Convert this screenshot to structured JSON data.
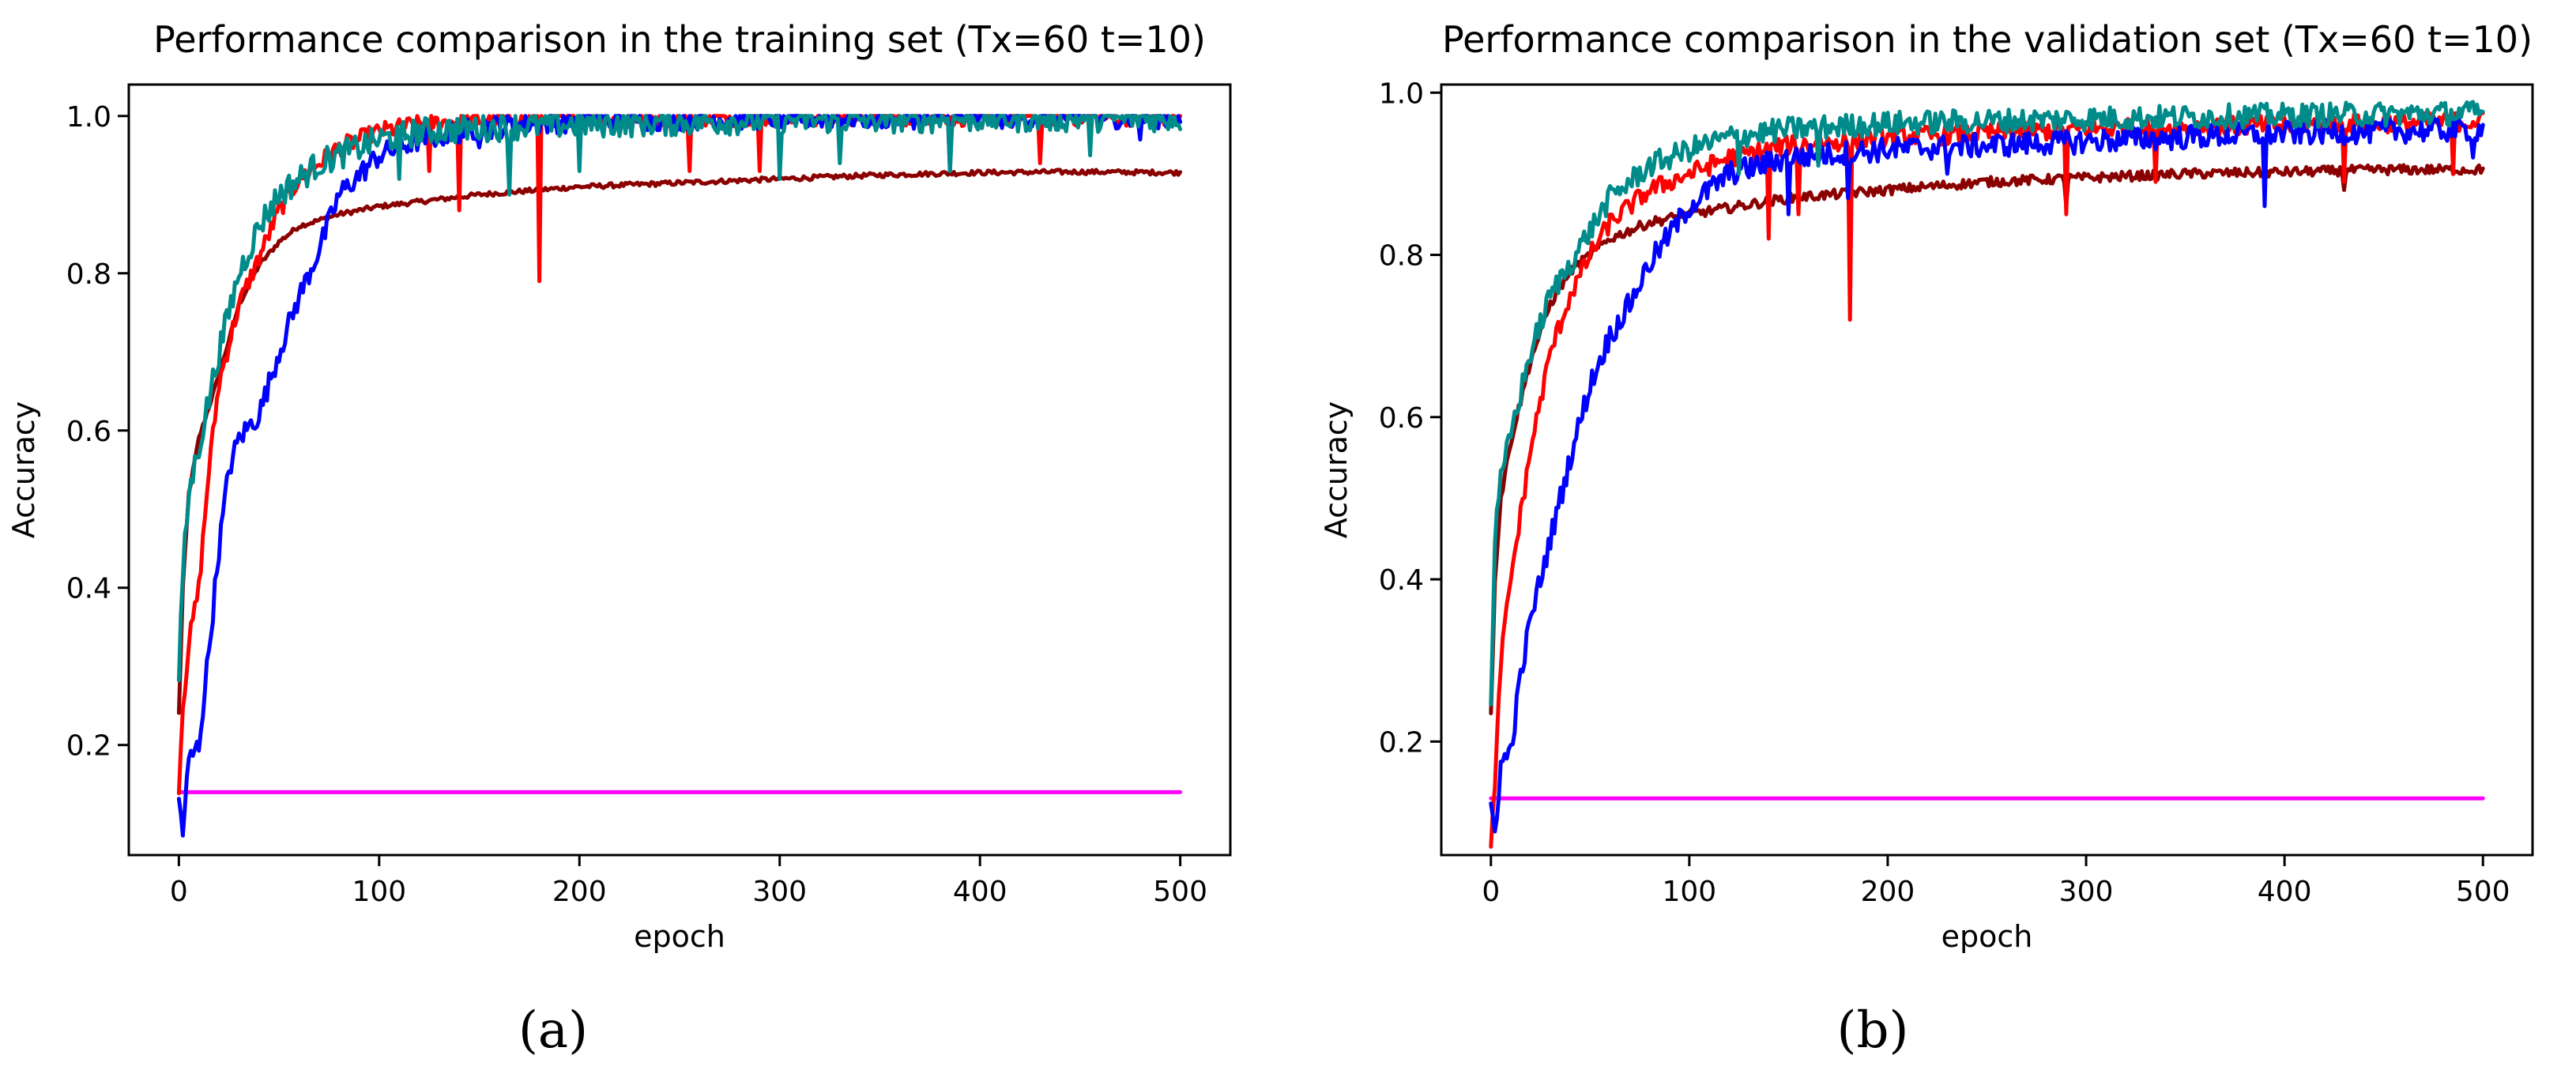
{
  "chart_data": [
    {
      "type": "line",
      "panel_label": "(a)",
      "title": "Performance comparison in the training set (Tx=60   t=10)",
      "xlabel": "epoch",
      "ylabel": "Accuracy",
      "xlim": [
        -25,
        525
      ],
      "ylim": [
        0.06,
        1.04
      ],
      "xticks": [
        0,
        100,
        200,
        300,
        400,
        500
      ],
      "yticks": [
        0.2,
        0.4,
        0.6,
        0.8,
        1.0
      ],
      "xtick_labels": [
        "0",
        "100",
        "200",
        "300",
        "400",
        "500"
      ],
      "ytick_labels": [
        "0.2",
        "0.4",
        "0.6",
        "0.8",
        "1.0"
      ],
      "grid": false,
      "series": [
        {
          "name": "magenta",
          "color": "#ff00ff",
          "noise": 0,
          "x": [
            0,
            500
          ],
          "y": [
            0.14,
            0.14
          ],
          "dips": []
        },
        {
          "name": "dark red",
          "color": "#8b0000",
          "noise": 0.003,
          "x": [
            0,
            2,
            5,
            10,
            20,
            30,
            40,
            50,
            60,
            80,
            100,
            150,
            200,
            250,
            300,
            350,
            400,
            450,
            500
          ],
          "y": [
            0.24,
            0.4,
            0.52,
            0.59,
            0.67,
            0.76,
            0.81,
            0.84,
            0.86,
            0.875,
            0.885,
            0.9,
            0.91,
            0.915,
            0.92,
            0.925,
            0.928,
            0.929,
            0.928
          ],
          "dips": []
        },
        {
          "name": "red",
          "color": "#ff0000",
          "noise": 0.012,
          "x": [
            0,
            2,
            5,
            10,
            15,
            20,
            30,
            40,
            50,
            60,
            70,
            80,
            100,
            120,
            150,
            200,
            300,
            400,
            500
          ],
          "y": [
            0.15,
            0.25,
            0.33,
            0.4,
            0.55,
            0.66,
            0.76,
            0.82,
            0.88,
            0.92,
            0.94,
            0.96,
            0.98,
            0.99,
            0.995,
            0.998,
            0.999,
            0.999,
            0.999
          ],
          "dips": [
            [
              125,
              0.93
            ],
            [
              140,
              0.88
            ],
            [
              180,
              0.79
            ],
            [
              255,
              0.93
            ],
            [
              290,
              0.93
            ],
            [
              430,
              0.94
            ]
          ]
        },
        {
          "name": "blue",
          "color": "#0000ff",
          "noise": 0.015,
          "x": [
            0,
            2,
            5,
            10,
            15,
            20,
            25,
            30,
            40,
            50,
            60,
            70,
            80,
            100,
            120,
            150,
            200,
            300,
            400,
            500
          ],
          "y": [
            0.13,
            0.09,
            0.18,
            0.2,
            0.32,
            0.45,
            0.55,
            0.59,
            0.62,
            0.7,
            0.77,
            0.83,
            0.9,
            0.95,
            0.97,
            0.985,
            0.995,
            0.998,
            0.999,
            0.999
          ],
          "dips": [
            [
              150,
              0.96
            ],
            [
              385,
              0.93
            ],
            [
              480,
              0.97
            ]
          ]
        },
        {
          "name": "teal",
          "color": "#008b8b",
          "noise": 0.018,
          "x": [
            0,
            2,
            5,
            10,
            15,
            20,
            30,
            40,
            50,
            60,
            70,
            80,
            100,
            120,
            150,
            200,
            300,
            400,
            500
          ],
          "y": [
            0.28,
            0.42,
            0.52,
            0.58,
            0.64,
            0.7,
            0.8,
            0.86,
            0.9,
            0.92,
            0.94,
            0.95,
            0.97,
            0.98,
            0.985,
            0.99,
            0.995,
            0.997,
            0.998
          ],
          "dips": [
            [
              110,
              0.92
            ],
            [
              165,
              0.9
            ],
            [
              200,
              0.93
            ],
            [
              300,
              0.92
            ],
            [
              330,
              0.94
            ],
            [
              385,
              0.93
            ],
            [
              455,
              0.95
            ]
          ]
        }
      ]
    },
    {
      "type": "line",
      "panel_label": "(b)",
      "title": "Performance comparison in the validation set (Tx=60   t=10)",
      "xlabel": "epoch",
      "ylabel": "Accuracy",
      "xlim": [
        -25,
        525
      ],
      "ylim": [
        0.06,
        1.01
      ],
      "xticks": [
        0,
        100,
        200,
        300,
        400,
        500
      ],
      "yticks": [
        0.2,
        0.4,
        0.6,
        0.8,
        1.0
      ],
      "xtick_labels": [
        "0",
        "100",
        "200",
        "300",
        "400",
        "500"
      ],
      "ytick_labels": [
        "0.2",
        "0.4",
        "0.6",
        "0.8",
        "1.0"
      ],
      "grid": false,
      "series": [
        {
          "name": "magenta",
          "color": "#ff00ff",
          "noise": 0,
          "x": [
            0,
            500
          ],
          "y": [
            0.13,
            0.13
          ],
          "dips": []
        },
        {
          "name": "dark red",
          "color": "#8b0000",
          "noise": 0.006,
          "x": [
            0,
            2,
            5,
            10,
            20,
            30,
            40,
            50,
            60,
            80,
            100,
            150,
            200,
            250,
            300,
            350,
            400,
            450,
            500
          ],
          "y": [
            0.23,
            0.4,
            0.5,
            0.57,
            0.67,
            0.74,
            0.78,
            0.8,
            0.82,
            0.84,
            0.85,
            0.87,
            0.88,
            0.89,
            0.895,
            0.9,
            0.902,
            0.905,
            0.905
          ],
          "dips": [
            [
              290,
              0.86
            ],
            [
              430,
              0.88
            ]
          ]
        },
        {
          "name": "red",
          "color": "#ff0000",
          "noise": 0.012,
          "x": [
            0,
            2,
            5,
            10,
            15,
            20,
            30,
            40,
            50,
            60,
            70,
            80,
            100,
            120,
            150,
            200,
            300,
            400,
            500
          ],
          "y": [
            0.08,
            0.14,
            0.3,
            0.4,
            0.48,
            0.56,
            0.68,
            0.75,
            0.8,
            0.84,
            0.86,
            0.88,
            0.9,
            0.92,
            0.935,
            0.945,
            0.955,
            0.96,
            0.965
          ],
          "dips": [
            [
              140,
              0.82
            ],
            [
              155,
              0.85
            ],
            [
              181,
              0.72
            ],
            [
              290,
              0.85
            ],
            [
              335,
              0.89
            ],
            [
              430,
              0.89
            ],
            [
              485,
              0.9
            ]
          ]
        },
        {
          "name": "blue",
          "color": "#0000ff",
          "noise": 0.015,
          "x": [
            0,
            2,
            5,
            10,
            15,
            20,
            30,
            40,
            50,
            60,
            70,
            80,
            100,
            120,
            150,
            200,
            300,
            400,
            500
          ],
          "y": [
            0.12,
            0.09,
            0.17,
            0.19,
            0.28,
            0.35,
            0.45,
            0.55,
            0.64,
            0.7,
            0.74,
            0.79,
            0.86,
            0.9,
            0.92,
            0.93,
            0.94,
            0.95,
            0.955
          ],
          "dips": [
            [
              150,
              0.85
            ],
            [
              180,
              0.87
            ],
            [
              230,
              0.9
            ],
            [
              390,
              0.86
            ],
            [
              495,
              0.92
            ]
          ]
        },
        {
          "name": "teal",
          "color": "#008b8b",
          "noise": 0.015,
          "x": [
            0,
            2,
            5,
            10,
            15,
            20,
            30,
            40,
            50,
            60,
            70,
            80,
            100,
            120,
            150,
            200,
            300,
            400,
            500
          ],
          "y": [
            0.25,
            0.45,
            0.52,
            0.58,
            0.63,
            0.68,
            0.75,
            0.79,
            0.83,
            0.87,
            0.89,
            0.91,
            0.93,
            0.945,
            0.955,
            0.962,
            0.968,
            0.972,
            0.975
          ],
          "dips": [
            [
              125,
              0.9
            ],
            [
              165,
              0.91
            ]
          ]
        }
      ]
    }
  ]
}
